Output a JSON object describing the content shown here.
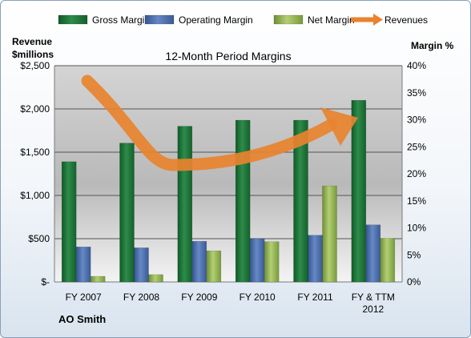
{
  "chart_data": {
    "type": "bar",
    "title": "12-Month Period Margins",
    "categories": [
      "FY 2007",
      "FY 2008",
      "FY 2009",
      "FY 2010",
      "FY 2011",
      "FY & TTM 2012"
    ],
    "series": [
      {
        "name": "Gross Margin",
        "axis": "left",
        "color": "#1f7a3a",
        "values": [
          1390,
          1605,
          1800,
          1870,
          1870,
          2100
        ]
      },
      {
        "name": "Operating Margin",
        "axis": "left",
        "color": "#4a6fb0",
        "values": [
          405,
          395,
          470,
          500,
          540,
          660
        ]
      },
      {
        "name": "Net Margin",
        "axis": "left",
        "color": "#98b956",
        "values": [
          65,
          85,
          360,
          465,
          1110,
          505
        ]
      }
    ],
    "revenues_arrow": {
      "name": "Revenues",
      "color": "#e8832f"
    },
    "y_left": {
      "label_line1": "Revenue",
      "label_line2": "$millions",
      "min": 0,
      "max": 2500,
      "ticks": [
        "$-",
        "$500",
        "$1,000",
        "$1,500",
        "$2,000",
        "$2,500"
      ]
    },
    "y_right": {
      "label": "Margin %",
      "min": 0,
      "max": 40,
      "ticks": [
        "0%",
        "5%",
        "10%",
        "15%",
        "20%",
        "25%",
        "30%",
        "35%",
        "40%"
      ]
    },
    "legend_position": "top",
    "company": "AO Smith"
  }
}
